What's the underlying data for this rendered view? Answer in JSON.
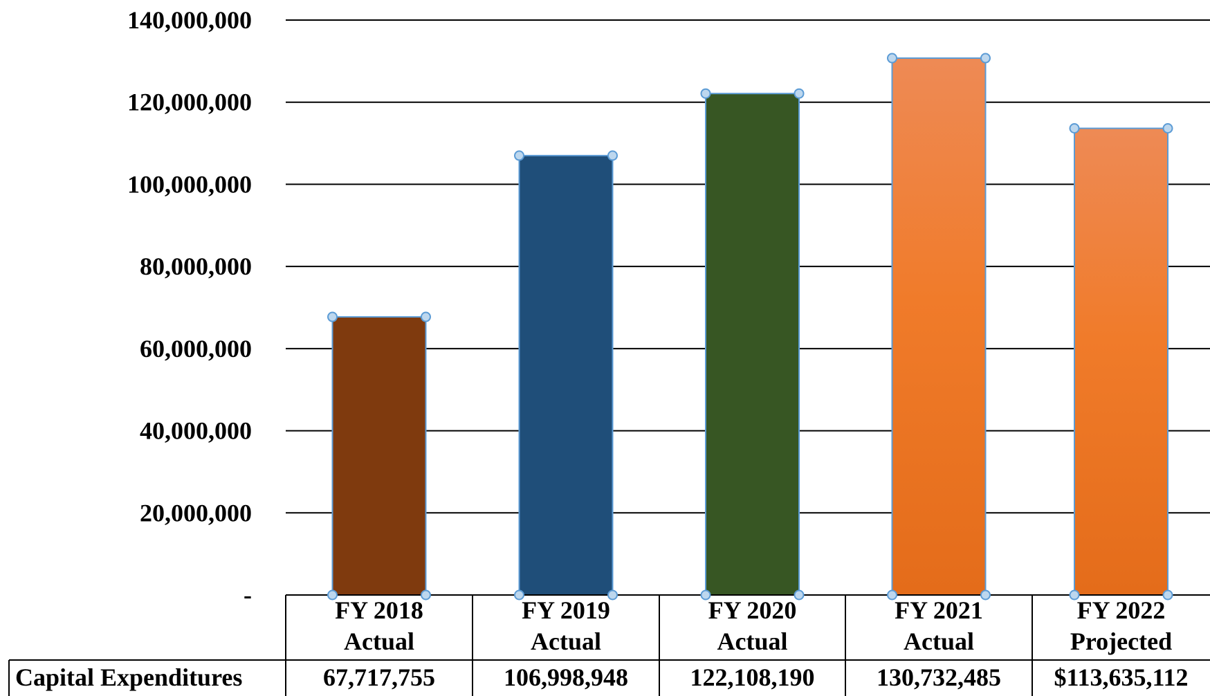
{
  "chart_data": {
    "type": "bar",
    "title": "",
    "xlabel": "",
    "ylabel": "",
    "ylim": [
      0,
      140000000
    ],
    "yticks": [
      {
        "value": 0,
        "label": "-"
      },
      {
        "value": 20000000,
        "label": "20,000,000"
      },
      {
        "value": 40000000,
        "label": "40,000,000"
      },
      {
        "value": 60000000,
        "label": "60,000,000"
      },
      {
        "value": 80000000,
        "label": "80,000,000"
      },
      {
        "value": 100000000,
        "label": "100,000,000"
      },
      {
        "value": 120000000,
        "label": "120,000,000"
      },
      {
        "value": 140000000,
        "label": "140,000,000"
      }
    ],
    "grid": true,
    "legend": "none",
    "categories": [
      [
        "FY 2018",
        "Actual"
      ],
      [
        "FY 2019",
        "Actual"
      ],
      [
        "FY 2020",
        "Actual"
      ],
      [
        "FY 2021",
        "Actual"
      ],
      [
        "FY 2022",
        "Projected"
      ]
    ],
    "series": [
      {
        "name": "Capital Expenditures",
        "values": [
          67717755,
          106998948,
          122108190,
          130732485,
          113635112
        ],
        "value_labels": [
          "67,717,755",
          "106,998,948",
          "122,108,190",
          "130,732,485",
          "$113,635,112"
        ],
        "colors": [
          "#7f3a0e",
          "#1f4e79",
          "#375623",
          "#ed7d31",
          "#ed7d31"
        ]
      }
    ],
    "data_table": true,
    "selected": true,
    "selection_handle_color": "#5b9bd5"
  }
}
